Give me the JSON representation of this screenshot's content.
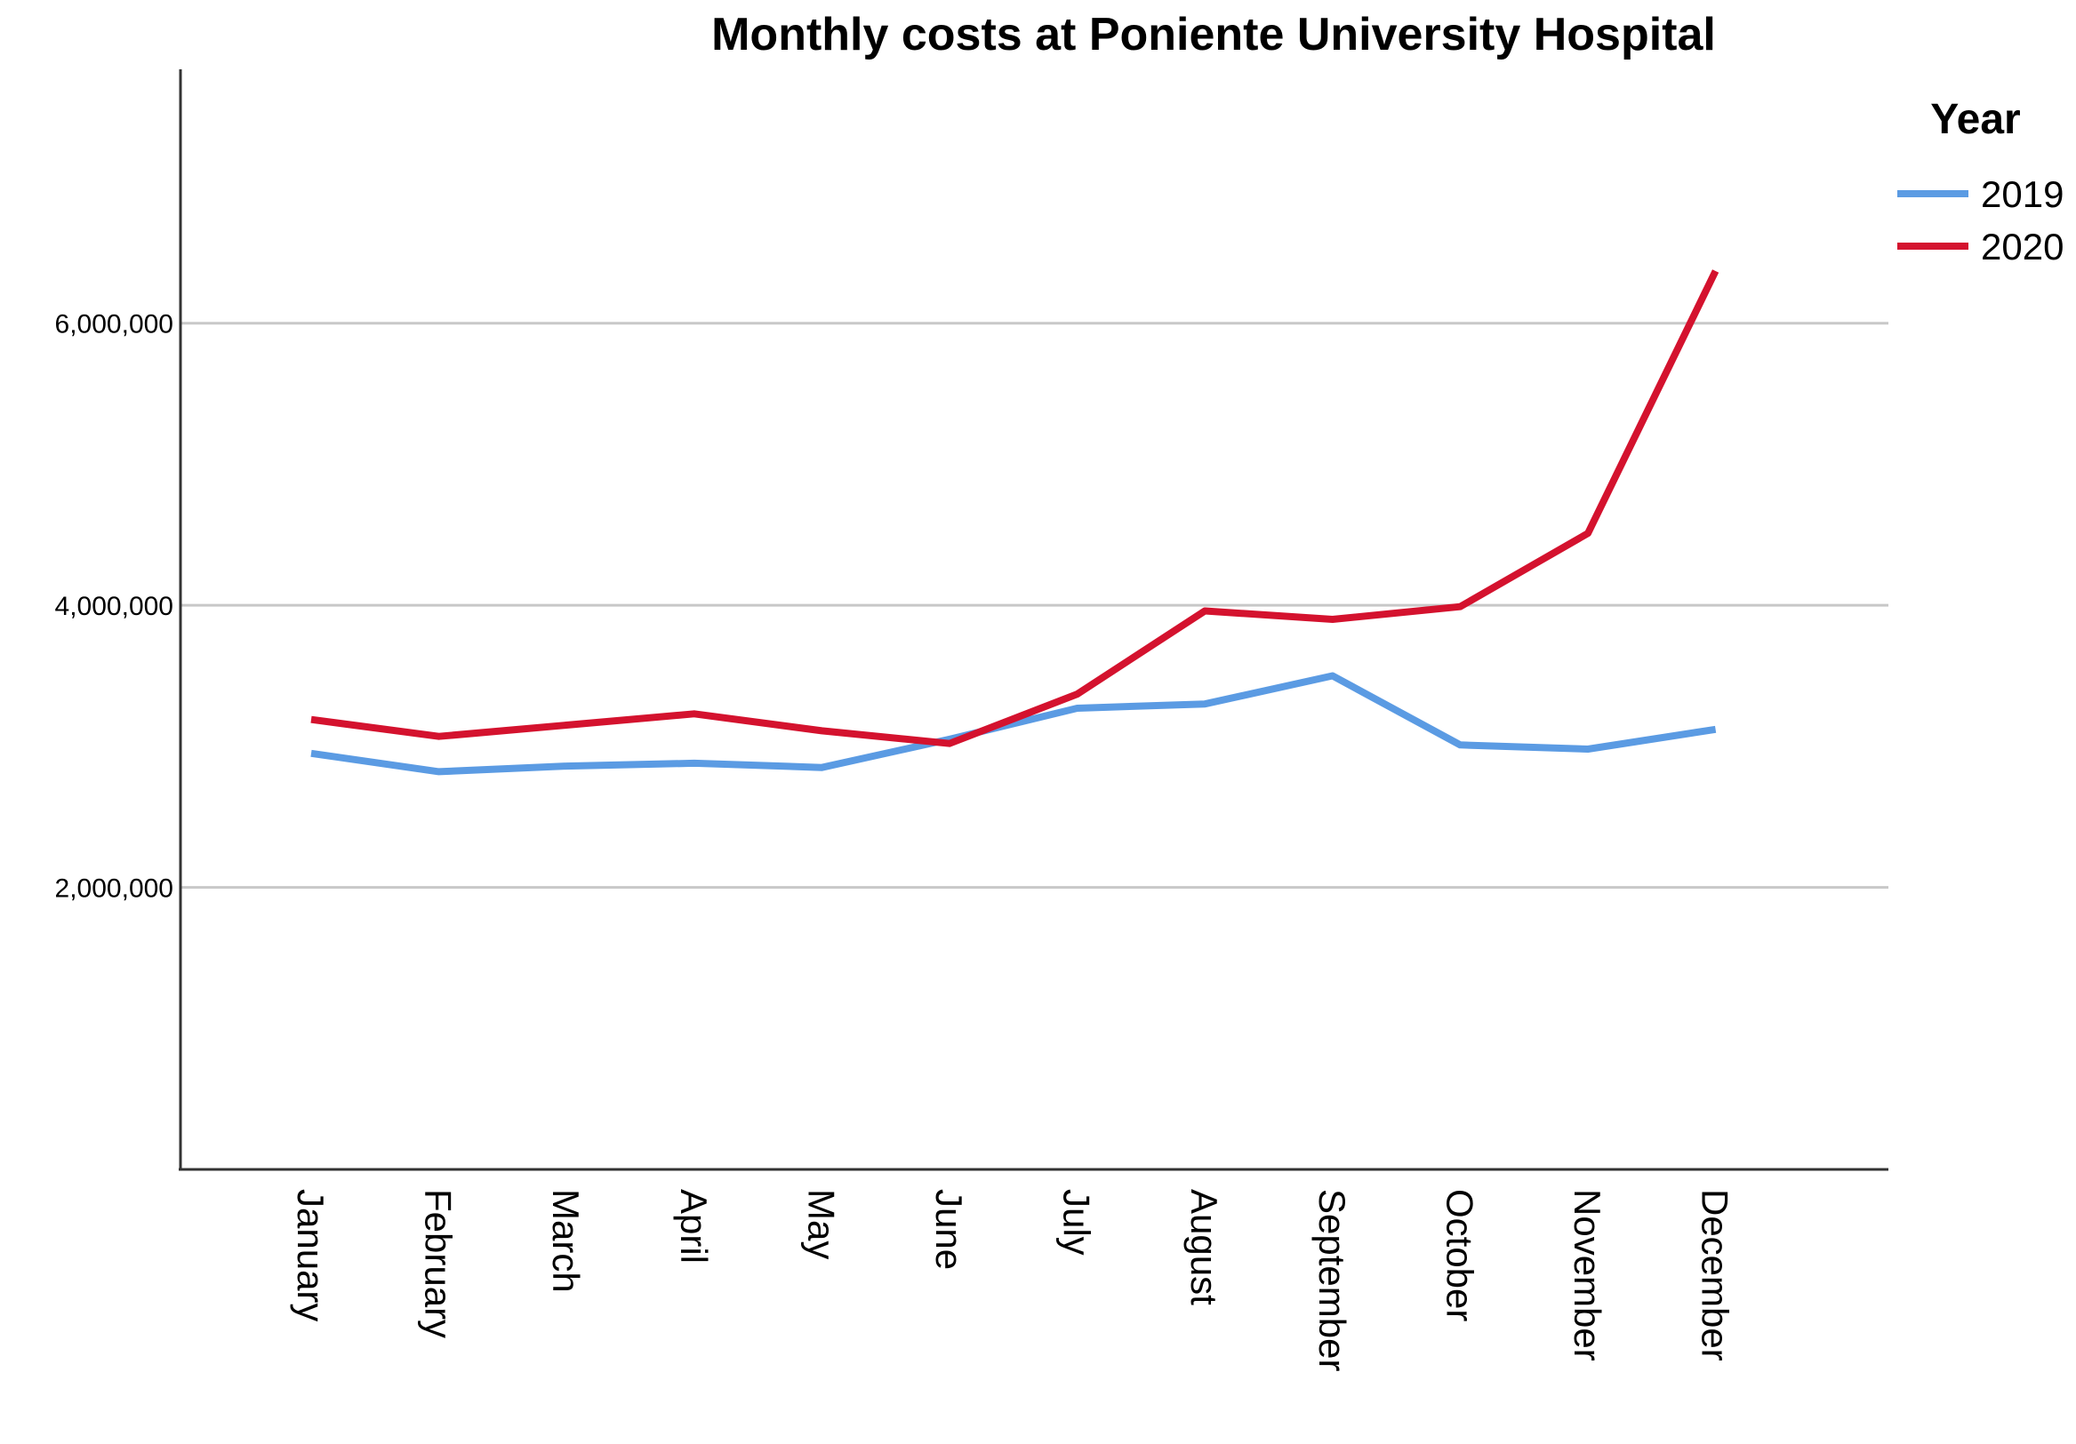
{
  "chart_data": {
    "type": "line",
    "title": "Monthly costs at Poniente University Hospital",
    "xlabel": "",
    "ylabel": "",
    "categories": [
      "January",
      "February",
      "March",
      "April",
      "May",
      "June",
      "July",
      "August",
      "September",
      "October",
      "November",
      "December"
    ],
    "series": [
      {
        "name": "2019",
        "color": "#5B9BE3",
        "values": [
          2950000,
          2820000,
          2860000,
          2880000,
          2850000,
          3050000,
          3270000,
          3300000,
          3500000,
          3010000,
          2980000,
          3120000
        ]
      },
      {
        "name": "2020",
        "color": "#D4122E",
        "values": [
          3190000,
          3070000,
          3150000,
          3230000,
          3110000,
          3020000,
          3370000,
          3960000,
          3900000,
          3990000,
          4510000,
          6370000
        ]
      }
    ],
    "ylim": [
      0,
      7800000
    ],
    "yticks": [
      2000000,
      4000000,
      6000000
    ],
    "ytick_labels": [
      "2,000,000",
      "4,000,000",
      "6,000,000"
    ],
    "grid": true,
    "legend": {
      "title": "Year",
      "position": "top-right"
    }
  }
}
